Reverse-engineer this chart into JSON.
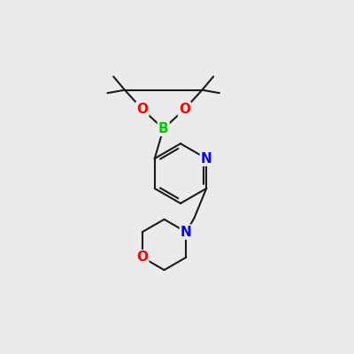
{
  "background_color": "#ebebeb",
  "atom_colors": {
    "B": "#00cc00",
    "O": "#ff0000",
    "N_pyridine": "#0000ff",
    "N_morpholine": "#0000ff",
    "C": "#000000"
  },
  "bond_color": "#1a1a1a",
  "bond_width": 1.5,
  "font_size_atoms": 11
}
